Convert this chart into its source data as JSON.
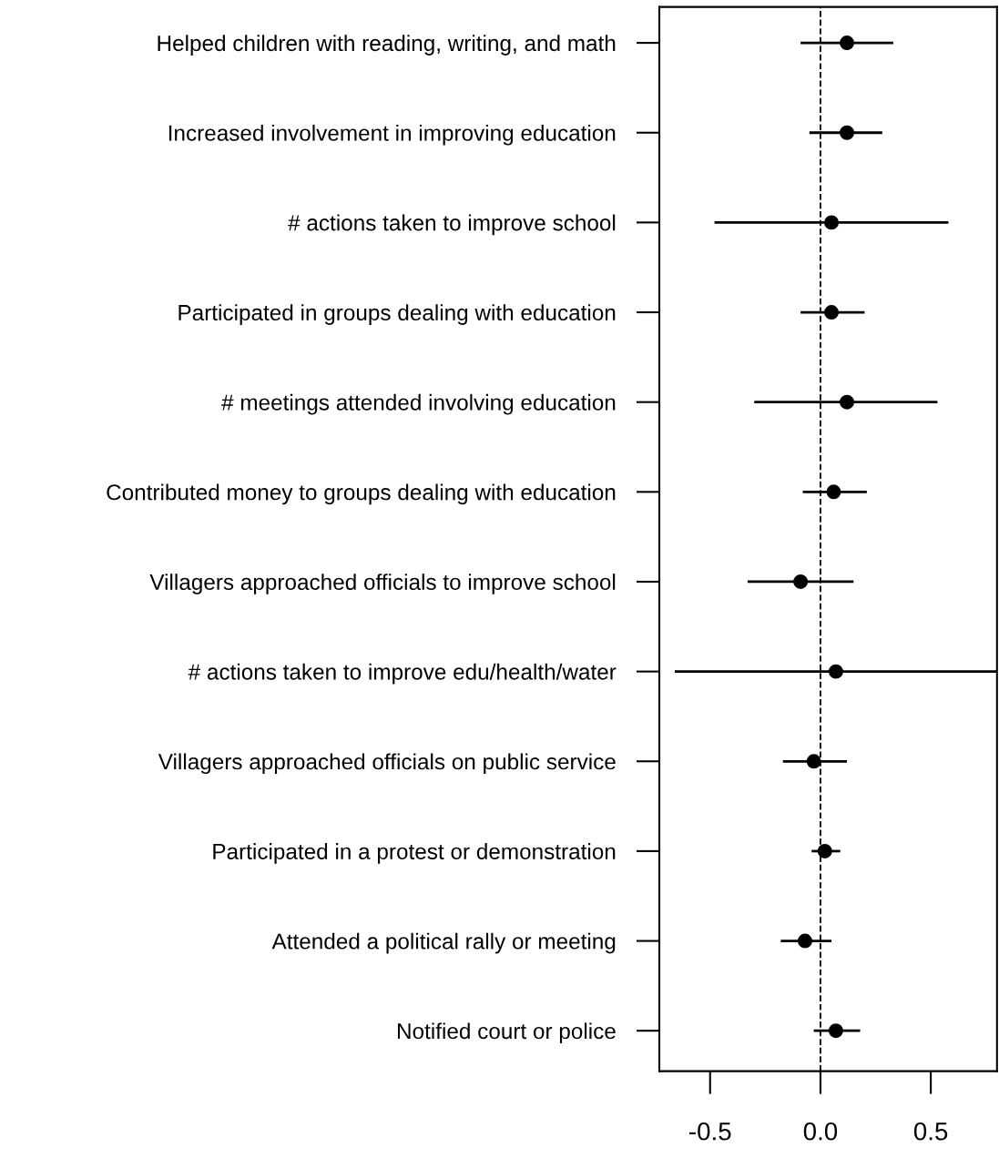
{
  "chart_data": {
    "type": "scatter",
    "orientation": "horizontal",
    "categories": [
      "Helped children with reading, writing, and math",
      "Increased involvement in improving education",
      "# actions taken to improve school",
      "Participated in groups dealing with education",
      "# meetings attended involving education",
      "Contributed money to groups dealing with education",
      "Villagers approached officials to improve school",
      "# actions taken to improve edu/health/water",
      "Villagers approached officials on public service",
      "Participated in a protest or demonstration",
      "Attended a political rally or meeting",
      "Notified court or police"
    ],
    "values": [
      0.12,
      0.12,
      0.05,
      0.05,
      0.12,
      0.06,
      -0.09,
      0.07,
      -0.03,
      0.02,
      -0.07,
      0.07
    ],
    "errors": [
      [
        -0.09,
        0.33
      ],
      [
        -0.05,
        0.28
      ],
      [
        -0.48,
        0.58
      ],
      [
        -0.09,
        0.2
      ],
      [
        -0.3,
        0.53
      ],
      [
        -0.08,
        0.21
      ],
      [
        -0.33,
        0.15
      ],
      [
        -0.66,
        0.8
      ],
      [
        -0.17,
        0.12
      ],
      [
        -0.04,
        0.09
      ],
      [
        -0.18,
        0.05
      ],
      [
        -0.03,
        0.18
      ]
    ],
    "color": "#000000",
    "marker": "circle",
    "grid": false,
    "legend": false,
    "xlim": [
      -0.73,
      0.8
    ],
    "xticks": [
      -0.5,
      {
        "value": 0,
        "label": "0.0"
      },
      0.5
    ],
    "ref_lines": [
      {
        "axis": "x",
        "value": 0,
        "line_style": "dashed",
        "color": "#000000"
      }
    ]
  }
}
